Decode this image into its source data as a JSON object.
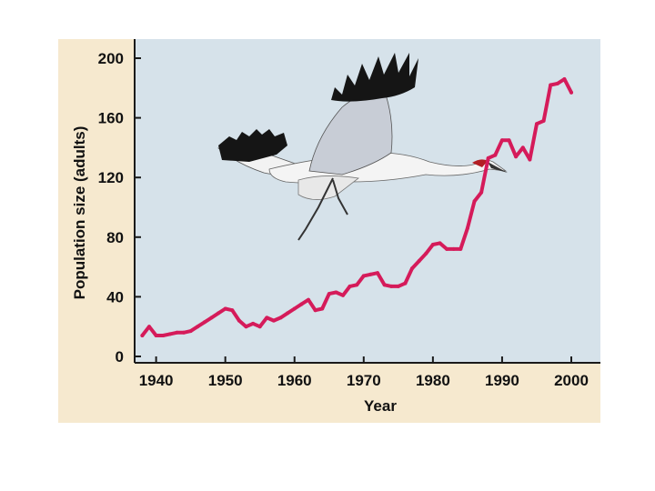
{
  "colors": {
    "panel": "#f6e9cf",
    "plot_bg": "#d6e2ea",
    "line": "#d51b5a",
    "axis": "#1a1a1a"
  },
  "icons": {
    "illustration": "whooping-crane-icon"
  },
  "chart_data": {
    "type": "line",
    "title": "",
    "xlabel": "Year",
    "ylabel": "Population size (adults)",
    "xlim": [
      1938,
      2004
    ],
    "ylim": [
      0,
      210
    ],
    "x_ticks": [
      "1940",
      "1950",
      "1960",
      "1970",
      "1980",
      "1990",
      "2000"
    ],
    "y_ticks": [
      "0",
      "40",
      "80",
      "120",
      "160",
      "200"
    ],
    "grid": false,
    "legend": "none",
    "series": [
      {
        "x": [
          1938,
          1939,
          1940,
          1941,
          1942,
          1943,
          1944,
          1945,
          1946,
          1947,
          1948,
          1949,
          1950,
          1951,
          1952,
          1953,
          1954,
          1955,
          1956,
          1957,
          1958,
          1959,
          1960,
          1961,
          1962,
          1963,
          1964,
          1965,
          1966,
          1967,
          1968,
          1969,
          1970,
          1971,
          1972,
          1973,
          1974,
          1975,
          1976,
          1977,
          1978,
          1979,
          1980,
          1981,
          1982,
          1983,
          1984,
          1985,
          1986,
          1987,
          1988,
          1989,
          1990,
          1991,
          1992,
          1993,
          1994,
          1995,
          1996,
          1997,
          1998,
          1999,
          2000
        ],
        "values": [
          14,
          20,
          14,
          14,
          15,
          16,
          16,
          17,
          20,
          23,
          26,
          29,
          32,
          31,
          24,
          20,
          22,
          20,
          26,
          24,
          26,
          29,
          32,
          35,
          38,
          31,
          32,
          42,
          43,
          41,
          47,
          48,
          54,
          55,
          56,
          48,
          47,
          47,
          49,
          59,
          64,
          69,
          75,
          76,
          72,
          72,
          72,
          86,
          104,
          110,
          133,
          135,
          145,
          145,
          134,
          140,
          132,
          156,
          158,
          182,
          183,
          186,
          177
        ]
      }
    ]
  }
}
